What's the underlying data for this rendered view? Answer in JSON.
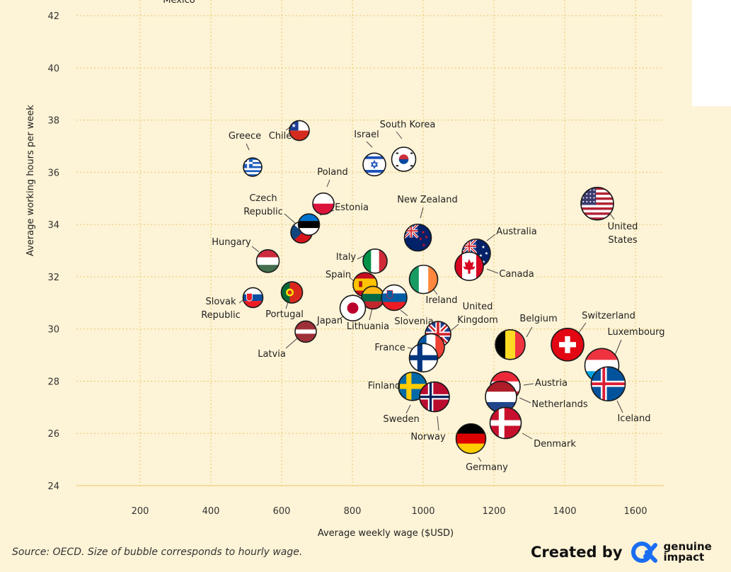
{
  "chart_data": {
    "type": "scatter",
    "xlabel": "Average weekly wage ($USD)",
    "ylabel": "Average working hours per week",
    "xlim": [
      20,
      1680
    ],
    "ylim": [
      24,
      42.6
    ],
    "xticks": [
      200,
      400,
      600,
      800,
      1000,
      1200,
      1400,
      1600
    ],
    "yticks": [
      24,
      26,
      28,
      30,
      32,
      34,
      36,
      38,
      40,
      42
    ],
    "grid": true,
    "bubble_note": "Size of bubble corresponds to hourly wage.",
    "points": [
      {
        "label": "Mexico",
        "x": 260,
        "y": 43.3,
        "size": 16
      },
      {
        "label": "Chile",
        "x": 650,
        "y": 37.6,
        "size": 14
      },
      {
        "label": "Greece",
        "x": 518,
        "y": 36.2,
        "size": 13
      },
      {
        "label": "Israel",
        "x": 862,
        "y": 36.3,
        "size": 16
      },
      {
        "label": "South Korea",
        "x": 945,
        "y": 36.5,
        "size": 17
      },
      {
        "label": "Poland",
        "x": 718,
        "y": 34.8,
        "size": 15
      },
      {
        "label": "Czech Republic",
        "x": 656,
        "y": 33.7,
        "size": 15
      },
      {
        "label": "Estonia",
        "x": 677,
        "y": 34.0,
        "size": 15
      },
      {
        "label": "New Zealand",
        "x": 985,
        "y": 33.5,
        "size": 19
      },
      {
        "label": "Hungary",
        "x": 561,
        "y": 32.6,
        "size": 16
      },
      {
        "label": "Italy",
        "x": 864,
        "y": 32.6,
        "size": 17
      },
      {
        "label": "Australia",
        "x": 1150,
        "y": 32.9,
        "size": 20
      },
      {
        "label": "Canada",
        "x": 1130,
        "y": 32.4,
        "size": 20
      },
      {
        "label": "Ireland",
        "x": 1001,
        "y": 31.9,
        "size": 20
      },
      {
        "label": "Spain",
        "x": 836,
        "y": 31.7,
        "size": 17
      },
      {
        "label": "Portugal",
        "x": 629,
        "y": 31.4,
        "size": 15
      },
      {
        "label": "Slovak Republic",
        "x": 519,
        "y": 31.2,
        "size": 14
      },
      {
        "label": "Lithuania",
        "x": 858,
        "y": 31.2,
        "size": 16
      },
      {
        "label": "Slovenia",
        "x": 918,
        "y": 31.2,
        "size": 18
      },
      {
        "label": "Japan",
        "x": 801,
        "y": 30.8,
        "size": 18
      },
      {
        "label": "Latvia",
        "x": 668,
        "y": 29.9,
        "size": 15
      },
      {
        "label": "United Kingdom",
        "x": 1042,
        "y": 29.8,
        "size": 18
      },
      {
        "label": "France",
        "x": 1022,
        "y": 29.3,
        "size": 19
      },
      {
        "label": "Finland",
        "x": 1001,
        "y": 28.9,
        "size": 20
      },
      {
        "label": "Belgium",
        "x": 1246,
        "y": 29.4,
        "size": 21
      },
      {
        "label": "Switzerland",
        "x": 1408,
        "y": 29.4,
        "size": 23
      },
      {
        "label": "Luxembourg",
        "x": 1505,
        "y": 28.6,
        "size": 24
      },
      {
        "label": "Iceland",
        "x": 1523,
        "y": 27.9,
        "size": 24
      },
      {
        "label": "Austria",
        "x": 1232,
        "y": 27.8,
        "size": 21
      },
      {
        "label": "Netherlands",
        "x": 1220,
        "y": 27.4,
        "size": 22
      },
      {
        "label": "Sweden",
        "x": 970,
        "y": 27.8,
        "size": 20
      },
      {
        "label": "Norway",
        "x": 1032,
        "y": 27.4,
        "size": 21
      },
      {
        "label": "Denmark",
        "x": 1233,
        "y": 26.4,
        "size": 22
      },
      {
        "label": "Germany",
        "x": 1135,
        "y": 25.8,
        "size": 21
      },
      {
        "label": "United States",
        "x": 1492,
        "y": 34.8,
        "size": 23
      }
    ]
  },
  "footer": {
    "source": "Source: OECD. Size of bubble corresponds to hourly wage.",
    "credit": "Created by",
    "brand_line1": "genuine",
    "brand_line2": "impact"
  }
}
